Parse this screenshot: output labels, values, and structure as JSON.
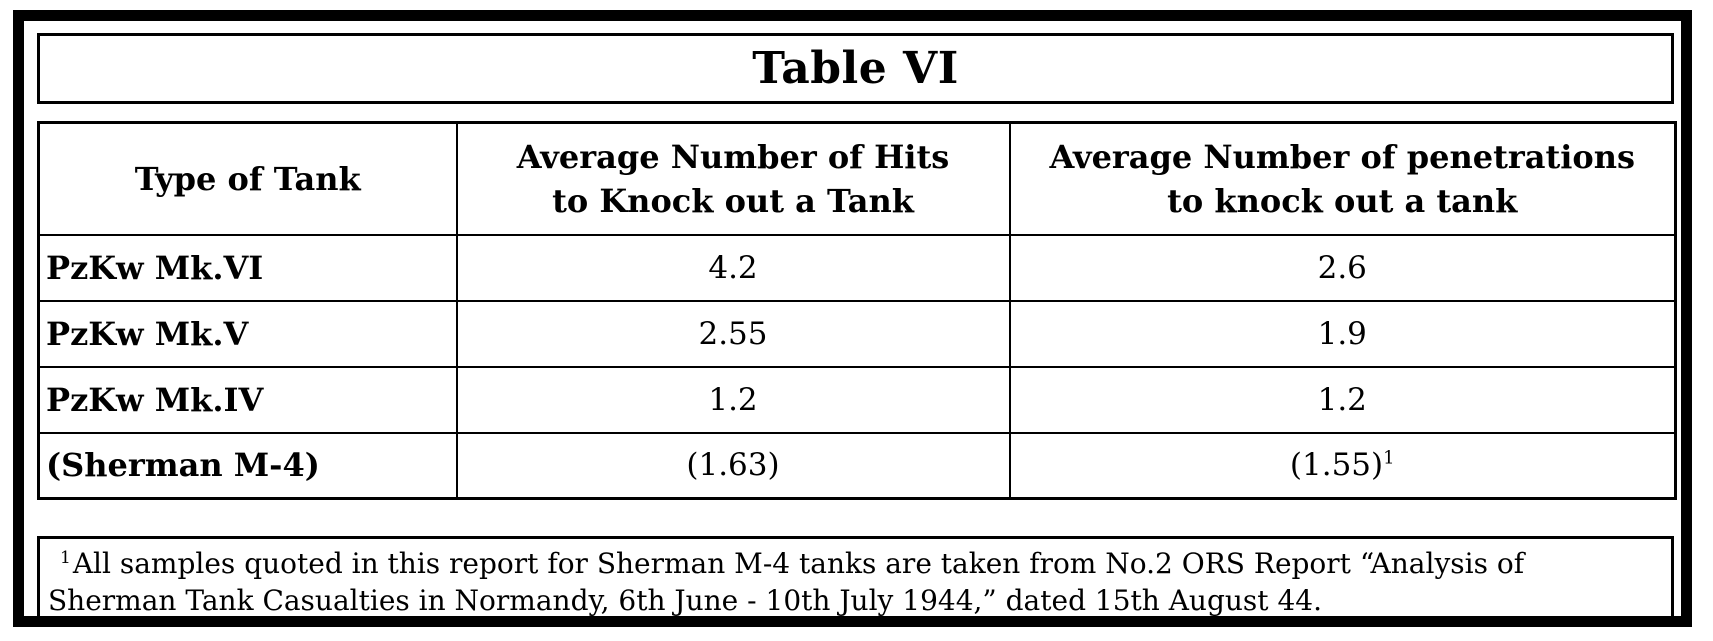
{
  "title": "Table VI",
  "table": {
    "headers": {
      "type": "Type of Tank",
      "hits_line1": "Average Number of Hits",
      "hits_line2": "to Knock out a Tank",
      "pen_line1": "Average Number of penetrations",
      "pen_line2": "to knock out a tank"
    },
    "rows": [
      {
        "type": "PzKw Mk.VI",
        "hits": "4.2",
        "penetrations": "2.6",
        "footnote_mark": ""
      },
      {
        "type": "PzKw Mk.V",
        "hits": "2.55",
        "penetrations": "1.9",
        "footnote_mark": ""
      },
      {
        "type": "PzKw Mk.IV",
        "hits": "1.2",
        "penetrations": "1.2",
        "footnote_mark": ""
      },
      {
        "type": "(Sherman M-4)",
        "hits": "(1.63)",
        "penetrations": "(1.55)",
        "footnote_mark": "1"
      }
    ]
  },
  "footnote": {
    "mark": "1",
    "line1": "All samples quoted in this report for Sherman M-4 tanks are taken from No.2 ORS Report “Analysis of",
    "line2": "Sherman Tank Casualties in Normandy, 6th June - 10th July 1944,” dated 15th August 44."
  }
}
